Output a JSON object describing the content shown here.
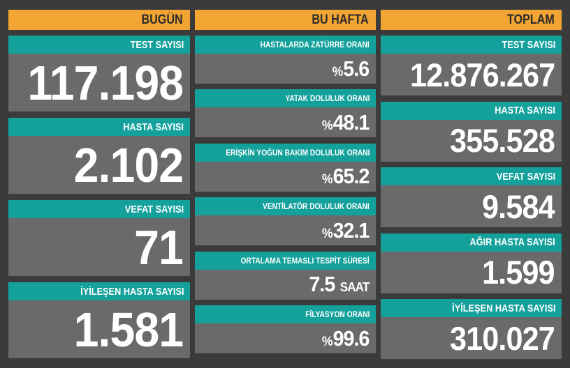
{
  "columns": [
    {
      "header": "BUGÜN",
      "cards": [
        {
          "label": "TEST SAYISI",
          "value": "117.198"
        },
        {
          "label": "HASTA SAYISI",
          "value": "2.102"
        },
        {
          "label": "VEFAT SAYISI",
          "value": "71"
        },
        {
          "label": "İYİLEŞEN HASTA SAYISI",
          "value": "1.581"
        }
      ]
    },
    {
      "header": "BU HAFTA",
      "cards": [
        {
          "label": "HASTALARDA ZATÜRRE ORANI",
          "prefix": "%",
          "value": "5.6"
        },
        {
          "label": "YATAK DOLULUK ORANI",
          "prefix": "%",
          "value": "48.1"
        },
        {
          "label": "ERİŞKİN YOĞUN BAKIM DOLULUK ORANI",
          "prefix": "%",
          "value": "65.2"
        },
        {
          "label": "VENTİLATÖR DOLULUK ORANI",
          "prefix": "%",
          "value": "32.1"
        },
        {
          "label": "ORTALAMA TEMASLI TESPİT SÜRESİ",
          "value": "7.5",
          "unit": "SAAT"
        },
        {
          "label": "FİLYASYON ORANI",
          "prefix": "%",
          "value": "99.6"
        }
      ]
    },
    {
      "header": "TOPLAM",
      "cards": [
        {
          "label": "TEST SAYISI",
          "value": "12.876.267"
        },
        {
          "label": "HASTA SAYISI",
          "value": "355.528"
        },
        {
          "label": "VEFAT SAYISI",
          "value": "9.584"
        },
        {
          "label": "AĞIR HASTA SAYISI",
          "value": "1.599"
        },
        {
          "label": "İYİLEŞEN HASTA SAYISI",
          "value": "310.027"
        }
      ]
    }
  ]
}
